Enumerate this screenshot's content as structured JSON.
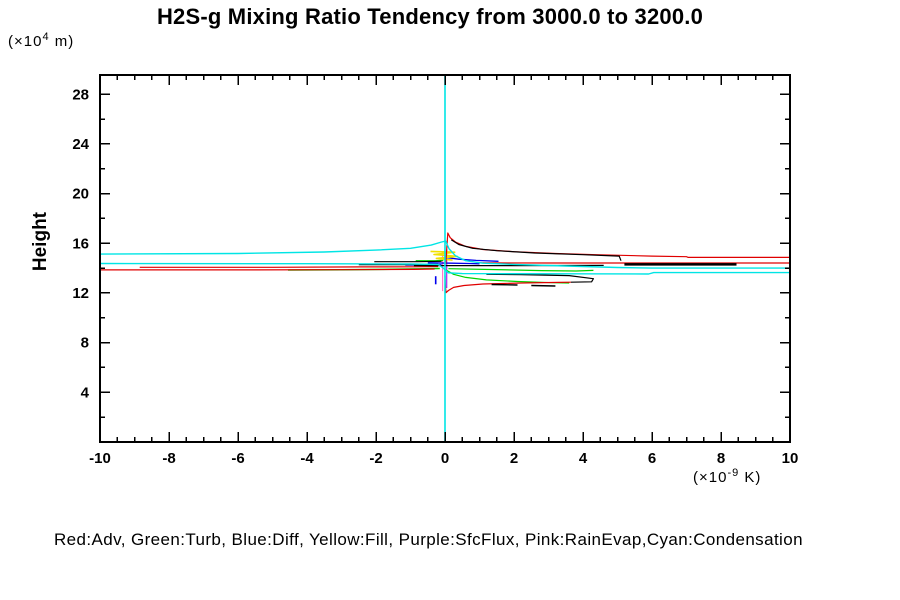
{
  "title": "H2S-g Mixing Ratio Tendency from 3000.0 to 3200.0",
  "y_axis": {
    "label": "Height",
    "unit_prefix": "(×10",
    "unit_exponent": "4",
    "unit_suffix": " m)",
    "major_ticks": [
      4,
      8,
      12,
      16,
      20,
      24,
      28
    ]
  },
  "x_axis": {
    "unit_prefix": "(×10",
    "unit_exponent": "-9",
    "unit_suffix": " K)",
    "major_ticks": [
      -10,
      -8,
      -6,
      -4,
      -2,
      0,
      2,
      4,
      6,
      8,
      10
    ]
  },
  "legend_text": "Red:Adv, Green:Turb, Blue:Diff, Yellow:Fill, Purple:SfcFlux, Pink:RainEvap,Cyan:Condensation",
  "chart_data": {
    "type": "line",
    "title": "H2S-g Mixing Ratio Tendency from 3000.0 to 3200.0",
    "xlabel": "(×10^-9 K)",
    "ylabel": "Height (×10^4 m)",
    "xlim": [
      -10,
      10
    ],
    "ylim": [
      0,
      29.55
    ],
    "x_minor_step": 0.5,
    "y_minor_step": 2,
    "grid": false,
    "legend_mapping": {
      "Red": "Adv",
      "Green": "Turb",
      "Blue": "Diff",
      "Yellow": "Fill",
      "Purple": "SfcFlux",
      "Pink": "RainEvap",
      "Cyan": "Condensation"
    },
    "series": [
      {
        "name": "sfcflux-purple-vertical",
        "color": "#aa22ee",
        "width": 1.2,
        "points": [
          [
            0.05,
            15.5
          ],
          [
            0.05,
            12.4
          ]
        ]
      },
      {
        "name": "rainevap-pink-vertical",
        "color": "#ff77cc",
        "width": 1.2,
        "points": [
          [
            -0.07,
            15.3
          ],
          [
            -0.07,
            12.15
          ]
        ]
      },
      {
        "name": "turb-green-left",
        "color": "#00d400",
        "width": 1.5,
        "points": [
          [
            -4.55,
            13.85
          ],
          [
            -3,
            13.87
          ],
          [
            -1.8,
            13.9
          ],
          [
            -0.8,
            13.94
          ],
          [
            -0.15,
            13.97
          ]
        ]
      },
      {
        "name": "turb-green-left-short",
        "color": "#00d400",
        "width": 1.2,
        "points": [
          [
            -0.85,
            14.6
          ],
          [
            -0.3,
            14.6
          ],
          [
            -0.05,
            14.62
          ]
        ]
      },
      {
        "name": "turb-green-right-desc",
        "color": "#00d400",
        "width": 1.2,
        "points": [
          [
            0.03,
            13.85
          ],
          [
            0.25,
            13.5
          ],
          [
            0.6,
            13.25
          ],
          [
            1.2,
            13.05
          ],
          [
            2.1,
            12.92
          ],
          [
            3.1,
            12.83
          ],
          [
            3.6,
            12.8
          ]
        ]
      },
      {
        "name": "turb-green-right-flat",
        "color": "#00d400",
        "width": 1.2,
        "points": [
          [
            0.1,
            13.95
          ],
          [
            1.5,
            13.88
          ],
          [
            2.8,
            13.8
          ],
          [
            3.8,
            13.77
          ],
          [
            4.3,
            13.82
          ]
        ]
      },
      {
        "name": "diff-blue-left",
        "color": "#0000ee",
        "width": 1.3,
        "points": [
          [
            -1.15,
            14.25
          ],
          [
            -0.5,
            14.25
          ],
          [
            -0.1,
            14.27
          ]
        ]
      },
      {
        "name": "diff-blue-right-desc",
        "color": "#0000ee",
        "width": 1.3,
        "points": [
          [
            0.05,
            14.85
          ],
          [
            0.4,
            14.72
          ],
          [
            0.9,
            14.62
          ],
          [
            1.55,
            14.55
          ]
        ]
      },
      {
        "name": "diff-blue-center",
        "color": "#0000ee",
        "width": 1.3,
        "points": [
          [
            -0.5,
            14.43
          ],
          [
            0.2,
            14.4
          ],
          [
            0.7,
            14.37
          ],
          [
            1.0,
            14.35
          ]
        ]
      },
      {
        "name": "diff-blue-vert-left",
        "color": "#0000ee",
        "width": 1.6,
        "points": [
          [
            -0.27,
            13.35
          ],
          [
            -0.27,
            12.7
          ]
        ]
      },
      {
        "name": "fill-yellow-zigzag",
        "color": "#f0e000",
        "width": 1.6,
        "points": [
          [
            -0.42,
            15.35
          ],
          [
            0.28,
            15.28
          ],
          [
            -0.32,
            15.1
          ],
          [
            0.35,
            14.95
          ],
          [
            -0.25,
            14.78
          ],
          [
            0.22,
            14.65
          ]
        ]
      },
      {
        "name": "adv-red-left-a",
        "color": "#e00000",
        "width": 1.2,
        "points": [
          [
            -8.85,
            14.07
          ],
          [
            -5,
            14.07
          ],
          [
            -2.4,
            14.1
          ],
          [
            -0.9,
            14.11
          ],
          [
            -0.2,
            14.13
          ]
        ]
      },
      {
        "name": "adv-red-left-b",
        "color": "#e00000",
        "width": 1.2,
        "points": [
          [
            -10,
            13.86
          ],
          [
            -6,
            13.86
          ],
          [
            -2.8,
            13.87
          ],
          [
            -0.9,
            13.9
          ],
          [
            -0.3,
            13.93
          ]
        ]
      },
      {
        "name": "adv-red-top-spike",
        "color": "#e00000",
        "width": 1.2,
        "points": [
          [
            0.02,
            14.35
          ],
          [
            0.05,
            15.5
          ],
          [
            0.08,
            16.83
          ],
          [
            0.15,
            16.45
          ],
          [
            0.3,
            16.1
          ],
          [
            0.6,
            15.75
          ],
          [
            1.1,
            15.5
          ],
          [
            2,
            15.32
          ],
          [
            3.2,
            15.18
          ],
          [
            4.5,
            15.07
          ],
          [
            6,
            14.97
          ],
          [
            7,
            14.92
          ],
          [
            7.05,
            14.86
          ],
          [
            10,
            14.86
          ]
        ]
      },
      {
        "name": "adv-red-right-mid",
        "color": "#e00000",
        "width": 1.2,
        "points": [
          [
            1.0,
            14.42
          ],
          [
            3,
            14.41
          ],
          [
            6,
            14.41
          ],
          [
            10,
            14.41
          ]
        ]
      },
      {
        "name": "adv-red-bottom-spike",
        "color": "#e00000",
        "width": 1.2,
        "points": [
          [
            0.0,
            13.4
          ],
          [
            0.01,
            12.7
          ],
          [
            0.03,
            12.02
          ],
          [
            0.1,
            12.2
          ],
          [
            0.25,
            12.45
          ],
          [
            0.55,
            12.6
          ],
          [
            1.1,
            12.72
          ],
          [
            2.2,
            12.8
          ],
          [
            3.3,
            12.85
          ],
          [
            3.65,
            12.87
          ]
        ]
      },
      {
        "name": "black-right-desc",
        "color": "#000000",
        "width": 1.2,
        "points": [
          [
            0.18,
            16.28
          ],
          [
            0.4,
            15.9
          ],
          [
            0.8,
            15.6
          ],
          [
            1.5,
            15.4
          ],
          [
            2.6,
            15.22
          ],
          [
            4,
            15.08
          ],
          [
            5.05,
            14.97
          ],
          [
            5.1,
            14.6
          ]
        ]
      },
      {
        "name": "black-thick-right",
        "color": "#000000",
        "width": 2.5,
        "points": [
          [
            5.2,
            14.3
          ],
          [
            8.45,
            14.3
          ]
        ]
      },
      {
        "name": "black-left-1",
        "color": "#000000",
        "width": 1.2,
        "points": [
          [
            -2.05,
            14.52
          ],
          [
            -0.8,
            14.52
          ],
          [
            -0.1,
            14.55
          ]
        ]
      },
      {
        "name": "black-left-2",
        "color": "#000000",
        "width": 1.2,
        "points": [
          [
            -2.5,
            14.28
          ],
          [
            -1.2,
            14.28
          ],
          [
            -0.2,
            14.3
          ]
        ]
      },
      {
        "name": "black-mid-long",
        "color": "#000000",
        "width": 1.2,
        "points": [
          [
            -0.9,
            14.2
          ],
          [
            2,
            14.2
          ],
          [
            4.6,
            14.22
          ]
        ]
      },
      {
        "name": "black-hook-bottom",
        "color": "#000000",
        "width": 1.2,
        "points": [
          [
            3.65,
            12.87
          ],
          [
            4.25,
            12.9
          ],
          [
            4.3,
            13.15
          ],
          [
            3.6,
            13.4
          ],
          [
            2.2,
            13.48
          ],
          [
            1.2,
            13.5
          ]
        ]
      },
      {
        "name": "black-dash-bottom-1",
        "color": "#000000",
        "width": 1.4,
        "points": [
          [
            1.35,
            12.68
          ],
          [
            2.1,
            12.64
          ]
        ]
      },
      {
        "name": "black-dash-bottom-2",
        "color": "#000000",
        "width": 1.4,
        "points": [
          [
            2.5,
            12.6
          ],
          [
            3.2,
            12.56
          ]
        ]
      },
      {
        "name": "condensation-cyan-upper",
        "color": "#00e5e5",
        "width": 1.4,
        "points": [
          [
            -10,
            15.13
          ],
          [
            -6,
            15.18
          ],
          [
            -3.5,
            15.3
          ],
          [
            -2,
            15.45
          ],
          [
            -1,
            15.6
          ],
          [
            -0.4,
            15.85
          ],
          [
            -0.1,
            16.1
          ],
          [
            0.02,
            16.18
          ],
          [
            0.12,
            15.55
          ],
          [
            0.3,
            15.0
          ],
          [
            0.6,
            14.6
          ],
          [
            1.1,
            14.4
          ],
          [
            2,
            14.3
          ],
          [
            3.5,
            14.17
          ],
          [
            5,
            14.05
          ],
          [
            6,
            14.0
          ],
          [
            10,
            14.0
          ]
        ]
      },
      {
        "name": "condensation-cyan-lower",
        "color": "#00e5e5",
        "width": 1.4,
        "points": [
          [
            -10,
            14.37
          ],
          [
            -4,
            14.36
          ],
          [
            -1,
            14.33
          ],
          [
            -0.2,
            14.3
          ],
          [
            -0.05,
            14.0
          ],
          [
            0.1,
            13.62
          ],
          [
            0.5,
            13.56
          ],
          [
            5.9,
            13.53
          ],
          [
            6.05,
            13.64
          ],
          [
            10,
            13.64
          ]
        ]
      },
      {
        "name": "condensation-cyan-vertical",
        "color": "#00e5e5",
        "width": 1.6,
        "points": [
          [
            0,
            29.55
          ],
          [
            0,
            0
          ]
        ]
      }
    ]
  }
}
